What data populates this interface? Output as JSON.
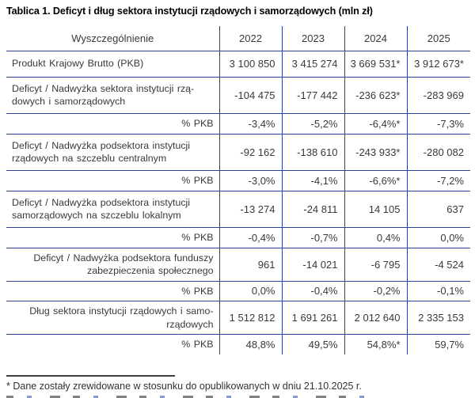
{
  "title": "Tablica 1. Deficyt i dług sektora instytucji rządowych i samorządowych (mln zł)",
  "table": {
    "header": [
      "Wyszczególnienie",
      "2022",
      "2023",
      "2024",
      "2025"
    ],
    "rows": [
      {
        "label": "Produkt Krajowy Brutto (PKB)",
        "align": "left",
        "values": [
          "3 100 850",
          "3 415 274",
          "3 669 531*",
          "3 912 673*"
        ]
      },
      {
        "label": "Deficyt / Nadwyżka sektora instytucji rzą-\ndowych i samorządowych",
        "align": "left",
        "values": [
          "-104 475",
          "-177 442",
          "-236 623*",
          "-283 969"
        ]
      },
      {
        "label": "% PKB",
        "align": "right",
        "values": [
          "-3,4%",
          "-5,2%",
          "-6,4%*",
          "-7,3%"
        ]
      },
      {
        "label": "Deficyt / Nadwyżka podsektora instytucji\nrządowych na szczeblu centralnym",
        "align": "left",
        "values": [
          "-92 162",
          "-138 610",
          "-243 933*",
          "-280 082"
        ]
      },
      {
        "label": "% PKB",
        "align": "right",
        "values": [
          "-3,0%",
          "-4,1%",
          "-6,6%*",
          "-7,2%"
        ]
      },
      {
        "label": "Deficyt / Nadwyżka podsektora instytucji\nsamorządowych na szczeblu lokalnym",
        "align": "left",
        "values": [
          "-13 274",
          "-24 811",
          "14 105",
          "637"
        ]
      },
      {
        "label": "% PKB",
        "align": "right",
        "values": [
          "-0,4%",
          "-0,7%",
          "0,4%",
          "0,0%"
        ]
      },
      {
        "label": "Deficyt / Nadwyżka podsektora funduszy\nzabezpieczenia społecznego",
        "align": "right",
        "values": [
          "961",
          "-14 021",
          "-6 795",
          "-4 524"
        ]
      },
      {
        "label": "% PKB",
        "align": "right",
        "values": [
          "0,0%",
          "-0,4%",
          "-0,2%",
          "-0,1%"
        ]
      },
      {
        "label": "Dług sektora instytucji rządowych i samo-\nrządowych",
        "align": "right",
        "values": [
          "1 512 812",
          "1 691 261",
          "2 012 640",
          "2 335 153"
        ]
      },
      {
        "label": "% PKB",
        "align": "right",
        "values": [
          "48,8%",
          "49,5%",
          "54,8%*",
          "59,7%"
        ]
      }
    ]
  },
  "footnote": "* Dane zostały zrewidowane w stosunku do opublikowanych w dniu 21.10.2025 r.",
  "colors": {
    "table_border": "#2c4195",
    "body_text": "#38383f",
    "title_text": "#000000"
  }
}
